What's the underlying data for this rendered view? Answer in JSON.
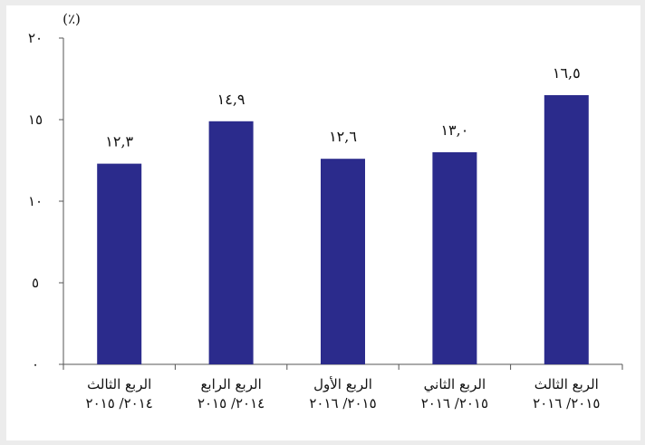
{
  "chart_data": {
    "type": "bar",
    "unit_label": "(٪)",
    "categories": [
      [
        "الربع الثالث",
        "٢٠١٤/ ٢٠١٥"
      ],
      [
        "الربع الرابع",
        "٢٠١٤/ ٢٠١٥"
      ],
      [
        "الربع الأول",
        "٢٠١٥/ ٢٠١٦"
      ],
      [
        "الربع الثاني",
        "٢٠١٥/ ٢٠١٦"
      ],
      [
        "الربع الثالث",
        "٢٠١٥/ ٢٠١٦"
      ]
    ],
    "values": [
      12.3,
      14.9,
      12.6,
      13.0,
      16.5
    ],
    "value_labels": [
      "١٢,٣",
      "١٤,٩",
      "١٢,٦",
      "١٣,٠",
      "١٦,٥"
    ],
    "ylim": [
      0,
      20
    ],
    "yticks": [
      0,
      5,
      10,
      15,
      20
    ],
    "ytick_labels": [
      "٠",
      "٥",
      "١٠",
      "١٥",
      "٢٠"
    ],
    "grid": false,
    "legend": "none",
    "bar_color": "#2b2b8c"
  }
}
